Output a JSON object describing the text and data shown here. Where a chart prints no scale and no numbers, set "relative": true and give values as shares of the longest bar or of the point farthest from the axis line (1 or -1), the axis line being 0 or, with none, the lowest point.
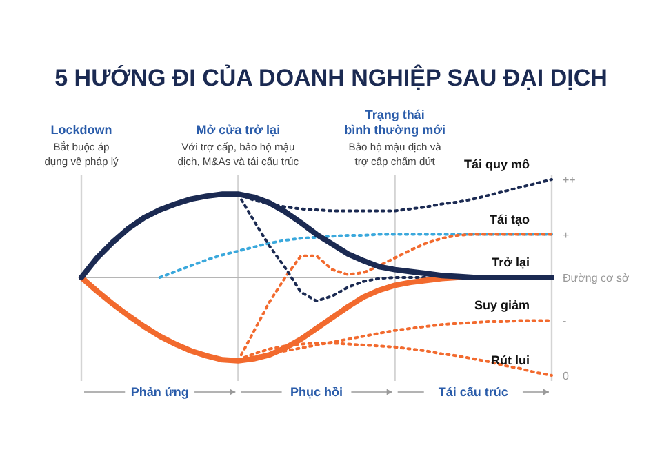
{
  "chart_data": {
    "type": "line",
    "title": "5 HƯỚNG ĐI CỦA DOANH NGHIỆP SAU ĐẠI DỊCH",
    "relative": true,
    "categories": [
      null,
      null,
      null,
      null,
      null,
      null,
      null,
      null,
      null,
      null,
      null,
      null,
      null,
      null,
      null,
      null,
      null,
      null,
      null,
      null,
      null,
      null,
      null,
      null,
      null,
      null,
      null,
      null,
      null,
      null,
      null
    ],
    "series": [
      {
        "name": "Tái quy mô",
        "color": "#1b2a52",
        "line_style": "dotted",
        "values": [
          null,
          null,
          null,
          null,
          null,
          null,
          null,
          null,
          null,
          null,
          0.85,
          0.79,
          0.75,
          0.72,
          0.7,
          0.69,
          0.68,
          0.68,
          0.68,
          0.68,
          0.68,
          0.7,
          0.72,
          0.75,
          0.77,
          0.8,
          0.84,
          0.88,
          0.92,
          0.96,
          1
        ]
      },
      {
        "name": "Tái tạo",
        "color": "#3aa8dc",
        "line_style": "dotted",
        "values": [
          null,
          null,
          null,
          null,
          null,
          0,
          0.06,
          0.12,
          0.18,
          0.23,
          0.27,
          0.31,
          0.35,
          0.38,
          0.4,
          0.41,
          0.42,
          0.43,
          0.43,
          0.44,
          0.44,
          0.44,
          0.44,
          0.44,
          0.44,
          0.44,
          0.44,
          0.44,
          0.44,
          0.44,
          0.44
        ]
      },
      {
        "color": "#f26a2e",
        "line_style": "dotted",
        "values": [
          null,
          null,
          null,
          null,
          null,
          null,
          null,
          null,
          null,
          null,
          -0.85,
          -0.55,
          -0.25,
          0,
          0.22,
          0.22,
          0.08,
          0.03,
          0.05,
          0.12,
          0.2,
          0.28,
          0.35,
          0.4,
          0.43,
          0.44,
          0.44,
          0.44,
          0.44,
          0.44,
          0.44
        ]
      },
      {
        "color": "#1b2a52",
        "line_style": "dotted",
        "values": [
          null,
          null,
          null,
          null,
          null,
          null,
          null,
          null,
          null,
          null,
          0.85,
          0.58,
          0.32,
          0.1,
          -0.15,
          -0.24,
          -0.19,
          -0.1,
          -0.04,
          -0.01,
          0,
          0,
          0,
          null,
          null,
          null,
          null,
          null,
          null,
          null,
          null
        ]
      },
      {
        "name": "Suy giảm",
        "color": "#f26a2e",
        "line_style": "dotted",
        "values": [
          null,
          null,
          null,
          null,
          null,
          null,
          null,
          null,
          null,
          null,
          -0.84,
          -0.81,
          -0.78,
          -0.75,
          -0.72,
          -0.69,
          -0.66,
          -0.63,
          -0.6,
          -0.57,
          -0.54,
          -0.52,
          -0.5,
          -0.48,
          -0.47,
          -0.46,
          -0.45,
          -0.45,
          -0.44,
          -0.44,
          -0.44
        ]
      },
      {
        "name": "Rút lui",
        "color": "#f26a2e",
        "line_style": "dotted",
        "values": [
          null,
          null,
          null,
          null,
          null,
          null,
          null,
          null,
          null,
          null,
          -0.84,
          -0.78,
          -0.73,
          -0.7,
          -0.68,
          -0.67,
          -0.67,
          -0.68,
          -0.69,
          -0.7,
          -0.71,
          -0.73,
          -0.75,
          -0.78,
          -0.8,
          -0.83,
          -0.86,
          -0.9,
          -0.93,
          -0.97,
          -1
        ]
      },
      {
        "color": "#f26a2e",
        "line_style": "solid",
        "values": [
          0,
          -0.14,
          -0.27,
          -0.39,
          -0.5,
          -0.6,
          -0.68,
          -0.75,
          -0.8,
          -0.84,
          -0.85,
          -0.83,
          -0.79,
          -0.72,
          -0.63,
          -0.52,
          -0.41,
          -0.3,
          -0.2,
          -0.13,
          -0.08,
          -0.05,
          -0.03,
          -0.01,
          0,
          0,
          0,
          null,
          null,
          null,
          null
        ]
      },
      {
        "name": "Trở lại",
        "color": "#1b2a52",
        "line_style": "solid",
        "values": [
          0,
          0.2,
          0.36,
          0.5,
          0.61,
          0.69,
          0.75,
          0.8,
          0.83,
          0.85,
          0.85,
          0.82,
          0.76,
          0.67,
          0.56,
          0.44,
          0.34,
          0.24,
          0.17,
          0.11,
          0.08,
          0.06,
          0.04,
          0.02,
          0.01,
          0,
          0,
          0,
          0,
          0,
          0
        ]
      }
    ],
    "ref_lines": [
      {
        "axis": "x",
        "label": "Lockdown",
        "color": "#d4d4d4"
      },
      {
        "axis": "x",
        "label": "Mở cửa trở lại",
        "color": "#d4d4d4"
      },
      {
        "axis": "x",
        "label": "Trạng thái bình thường mới",
        "color": "#d4d4d4"
      },
      {
        "axis": "x",
        "label": null,
        "color": "#d4d4d4"
      }
    ],
    "annotations": [
      "Bắt buộc áp dụng về pháp lý",
      "Với trợ cấp, bảo hộ mậu dịch, M&As và tái cấu trúc",
      "Bảo hộ mậu dịch và trợ cấp chấm dứt",
      "++",
      "+",
      "Đường cơ sở",
      "-",
      "0",
      "Phản ứng",
      "Phục hồi",
      "Tái cấu trúc"
    ]
  }
}
